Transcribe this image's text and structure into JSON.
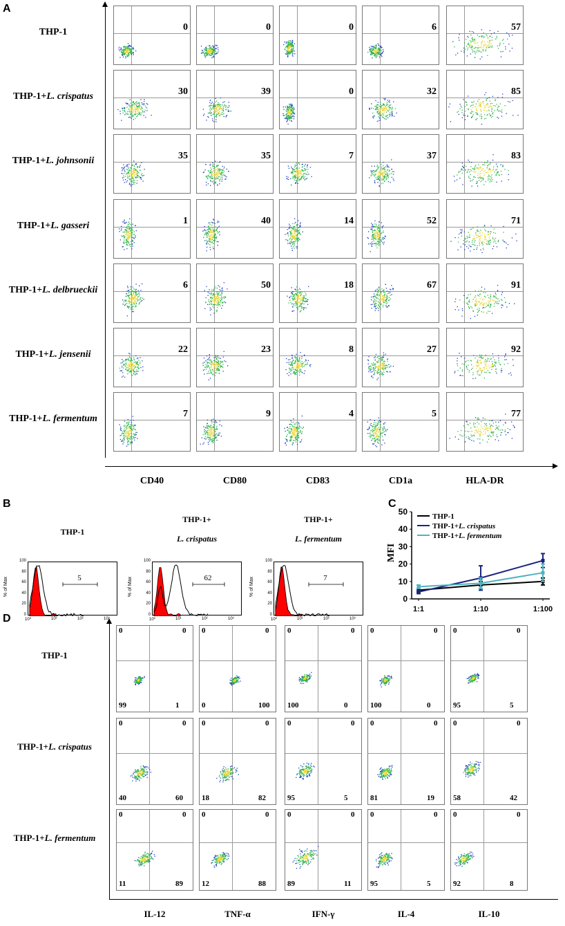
{
  "panels": {
    "a": "A",
    "b": "B",
    "c": "C",
    "d": "D"
  },
  "panel_a": {
    "rows": [
      {
        "prefix": "THP-1",
        "species": "",
        "values": [
          "0",
          "0",
          "0",
          "6",
          "57"
        ]
      },
      {
        "prefix": "THP-1+",
        "species": "L. crispatus",
        "values": [
          "30",
          "39",
          "0",
          "32",
          "85"
        ]
      },
      {
        "prefix": "THP-1+",
        "species": "L. johnsonii",
        "values": [
          "35",
          "35",
          "7",
          "37",
          "83"
        ]
      },
      {
        "prefix": "THP-1+",
        "species": "L. gasseri",
        "values": [
          "1",
          "40",
          "14",
          "52",
          "71"
        ]
      },
      {
        "prefix": "THP-1+",
        "species": "L. delbrueckii",
        "values": [
          "6",
          "50",
          "18",
          "67",
          "91"
        ]
      },
      {
        "prefix": "THP-1+",
        "species": "L. jensenii",
        "values": [
          "22",
          "23",
          "8",
          "27",
          "92"
        ]
      },
      {
        "prefix": "THP-1+",
        "species": "L. fermentum",
        "values": [
          "7",
          "9",
          "4",
          "5",
          "77"
        ]
      }
    ],
    "columns": [
      "CD40",
      "CD80",
      "CD83",
      "CD1a",
      "HLA-DR"
    ]
  },
  "panel_b": {
    "histograms": [
      {
        "line1": "THP-1",
        "line2": "",
        "value": "5"
      },
      {
        "line1": "THP-1+",
        "line2": "L. crispatus",
        "value": "62"
      },
      {
        "line1": "THP-1+",
        "line2": "L. fermentum",
        "value": "7"
      }
    ],
    "y_label": "% of Max",
    "y_ticks": [
      "100",
      "80",
      "60",
      "40",
      "20",
      "0"
    ],
    "x_ticks": [
      "10⁰",
      "10¹",
      "10²",
      "10³"
    ]
  },
  "chart_data": {
    "type": "line",
    "categories": [
      "1:1",
      "1:10",
      "1:100"
    ],
    "ylabel": "MFI",
    "ylim": [
      0,
      50
    ],
    "yticks": [
      "50",
      "40",
      "30",
      "20",
      "10",
      "0"
    ],
    "series": [
      {
        "name_prefix": "THP-1",
        "name_species": "",
        "color": "#000000",
        "values": [
          5,
          8,
          10
        ],
        "errors": [
          1,
          2,
          2
        ]
      },
      {
        "name_prefix": "THP-1+",
        "name_species": "L. crispatus",
        "color": "#1a237e",
        "values": [
          4,
          12,
          22
        ],
        "errors": [
          1,
          7,
          4
        ]
      },
      {
        "name_prefix": "THP-1+",
        "name_species": "L. fermentum",
        "color": "#4fb3bf",
        "values": [
          7,
          9,
          15
        ],
        "errors": [
          1,
          3,
          5
        ]
      }
    ]
  },
  "panel_d": {
    "rows": [
      {
        "prefix": "THP-1",
        "species": "",
        "quads": [
          [
            "0",
            "0",
            "99",
            "1"
          ],
          [
            "0",
            "0",
            "0",
            "100"
          ],
          [
            "0",
            "0",
            "100",
            "0"
          ],
          [
            "0",
            "0",
            "100",
            "0"
          ],
          [
            "0",
            "0",
            "95",
            "5"
          ]
        ]
      },
      {
        "prefix": "THP-1+",
        "species": "L. crispatus",
        "quads": [
          [
            "0",
            "0",
            "40",
            "60"
          ],
          [
            "0",
            "0",
            "18",
            "82"
          ],
          [
            "0",
            "0",
            "95",
            "5"
          ],
          [
            "0",
            "0",
            "81",
            "19"
          ],
          [
            "0",
            "0",
            "58",
            "42"
          ]
        ]
      },
      {
        "prefix": "THP-1+",
        "species": "L. fermentum",
        "quads": [
          [
            "0",
            "0",
            "11",
            "89"
          ],
          [
            "0",
            "0",
            "12",
            "88"
          ],
          [
            "0",
            "0",
            "89",
            "11"
          ],
          [
            "0",
            "0",
            "95",
            "5"
          ],
          [
            "0",
            "0",
            "92",
            "8"
          ]
        ]
      }
    ],
    "columns": [
      "IL-12",
      "TNF-α",
      "IFN-γ",
      "IL-4",
      "IL-10"
    ]
  },
  "colors": {
    "dot_blue": "#1b3fbf",
    "dot_green": "#2fb34a",
    "dot_yellow": "#e8d633",
    "histo_red": "#ff0000"
  }
}
